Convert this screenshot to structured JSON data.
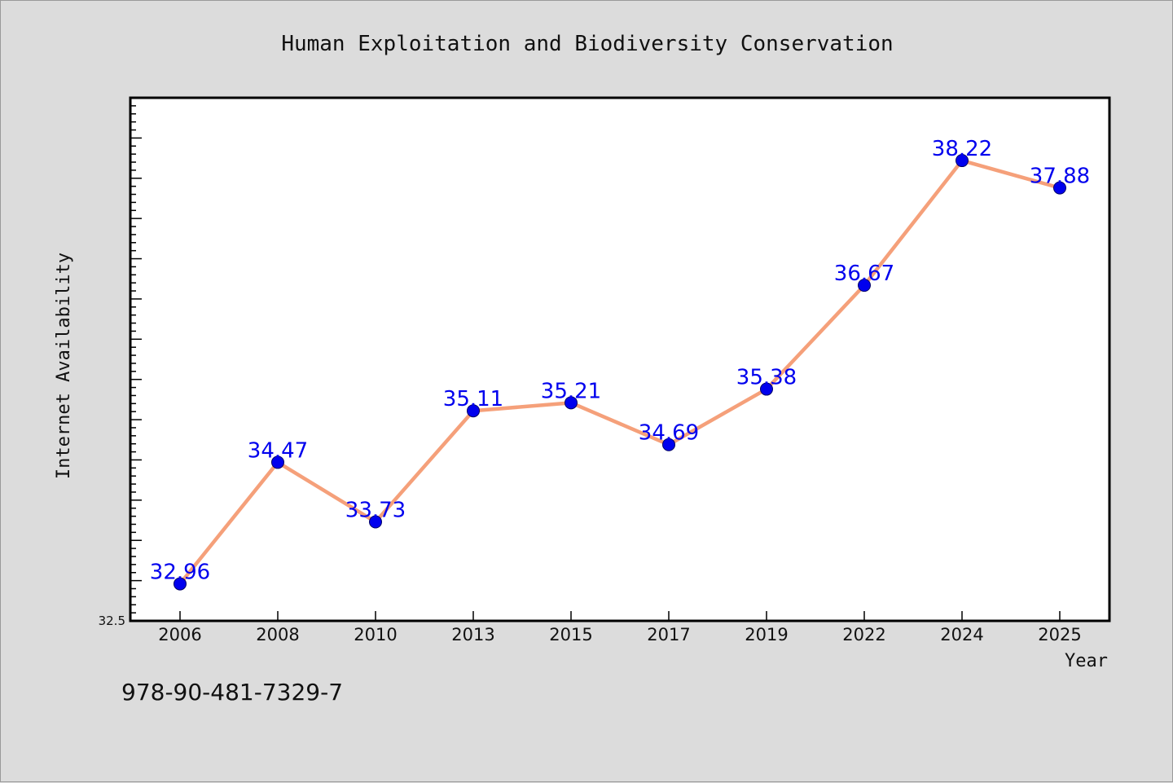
{
  "chart_data": {
    "type": "line",
    "title": "Human Exploitation and Biodiversity Conservation",
    "xlabel": "Year",
    "ylabel": "Internet Availability",
    "categories": [
      "2006",
      "2008",
      "2010",
      "2013",
      "2015",
      "2017",
      "2019",
      "2022",
      "2024",
      "2025"
    ],
    "series": [
      {
        "values": [
          32.96,
          34.47,
          33.73,
          35.11,
          35.21,
          34.69,
          35.38,
          36.67,
          38.22,
          37.88
        ]
      }
    ],
    "value_labels": [
      "32.96",
      "34.47",
      "33.73",
      "35.11",
      "35.21",
      "34.69",
      "35.38",
      "36.67",
      "38.22",
      "37.88"
    ],
    "ylim": [
      32.5,
      39.0
    ],
    "ytick_labels": [
      {
        "value": 32.5,
        "label": "32.5"
      }
    ],
    "grid": false,
    "line_color": "#f5a07a",
    "marker_color": "#0000ee",
    "label_color": "#0000ee"
  },
  "footer": {
    "isbn": "978-90-481-7329-7"
  }
}
